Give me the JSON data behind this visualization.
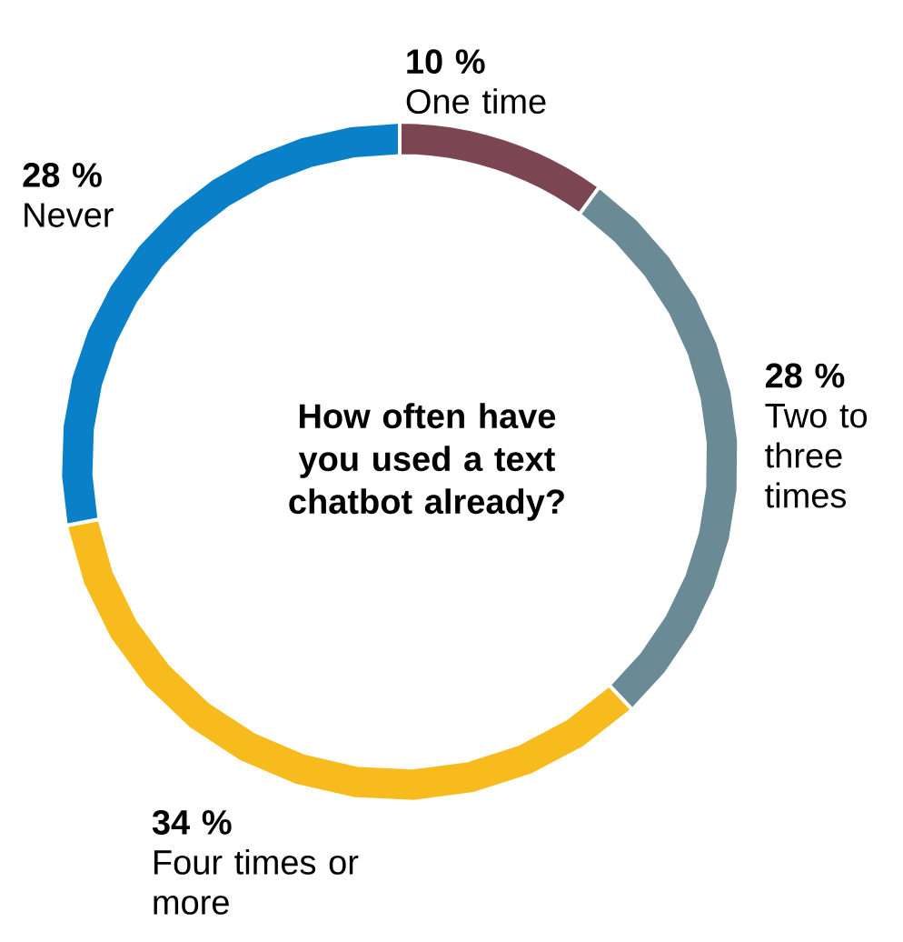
{
  "chart_data": {
    "type": "donut",
    "title": "How often have you used a text chatbot already?",
    "categories": [
      "Never",
      "Four times or more",
      "Two to three times",
      "One time"
    ],
    "values": [
      28,
      34,
      28,
      10
    ],
    "value_labels": [
      "28 %",
      "34 %",
      "28 %",
      "10 %"
    ],
    "colors": [
      "#0a80c8",
      "#f8bb1d",
      "#6a8a95",
      "#7b4651"
    ]
  }
}
